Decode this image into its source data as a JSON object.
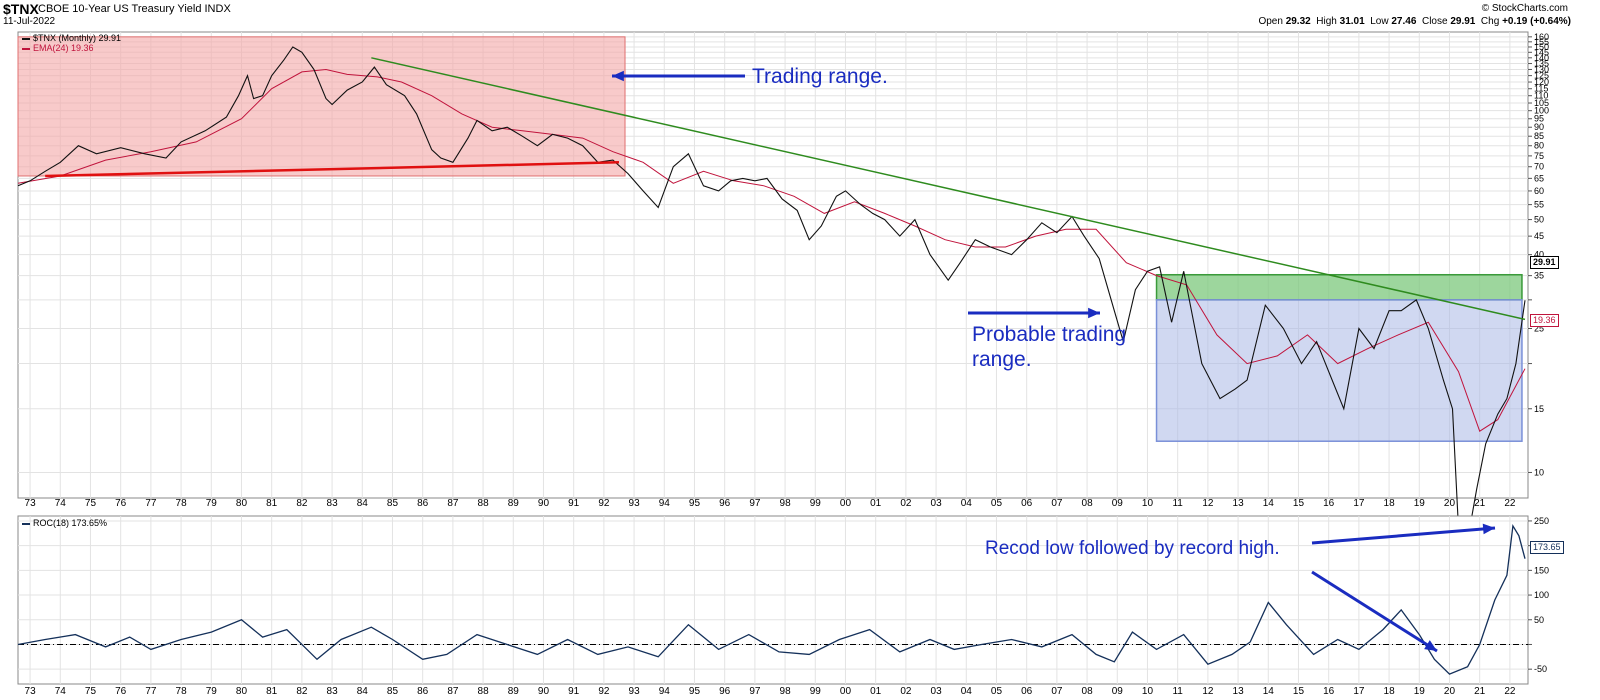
{
  "header": {
    "symbol": "$TNX",
    "description": "CBOE 10-Year US Treasury Yield INDX",
    "date": "11-Jul-2022",
    "credit": "© StockCharts.com",
    "open_label": "Open",
    "open": "29.32",
    "high_label": "High",
    "high": "31.01",
    "low_label": "Low",
    "low": "27.46",
    "close_label": "Close",
    "close": "29.91",
    "chg_label": "Chg",
    "chg": "+0.19 (+0.64%)"
  },
  "colors": {
    "price": "#111111",
    "ema": "#c0143c",
    "roc": "#14305a",
    "annotation": "#1a2cc0",
    "red_zone": "#f4a6a6",
    "green_zone": "#7cc87c",
    "blue_zone": "#a9b8e6",
    "trendline_green": "#2e8b1e",
    "trendline_red": "#e01010"
  },
  "chart_data": [
    {
      "type": "line",
      "name": "price-panel",
      "scale": "log",
      "ylim": [
        8.5,
        165
      ],
      "xlim": [
        1972.6,
        2022.6
      ],
      "y_ticks": [
        10,
        15,
        20,
        25,
        30,
        35,
        40,
        45,
        50,
        55,
        60,
        65,
        70,
        75,
        80,
        85,
        90,
        95,
        100,
        105,
        110,
        115,
        120,
        125,
        130,
        135,
        140,
        145,
        150,
        155,
        160
      ],
      "y_tick_labels": [
        "10",
        "15",
        "",
        "25",
        "",
        "35",
        "40",
        "45",
        "50",
        "55",
        "60",
        "65",
        "70",
        "75",
        "80",
        "85",
        "90",
        "95",
        "100",
        "105",
        "110",
        "115",
        "120",
        "125",
        "130",
        "135",
        "140",
        "145",
        "150",
        "155",
        "160"
      ],
      "x_ticks": [
        1973,
        1974,
        1975,
        1976,
        1977,
        1978,
        1979,
        1980,
        1981,
        1982,
        1983,
        1984,
        1985,
        1986,
        1987,
        1988,
        1989,
        1990,
        1991,
        1992,
        1993,
        1994,
        1995,
        1996,
        1997,
        1998,
        1999,
        2000,
        2001,
        2002,
        2003,
        2004,
        2005,
        2006,
        2007,
        2008,
        2009,
        2010,
        2011,
        2012,
        2013,
        2014,
        2015,
        2016,
        2017,
        2018,
        2019,
        2020,
        2021,
        2022
      ],
      "x_tick_labels": [
        "73",
        "74",
        "75",
        "76",
        "77",
        "78",
        "79",
        "80",
        "81",
        "82",
        "83",
        "84",
        "85",
        "86",
        "87",
        "88",
        "89",
        "90",
        "91",
        "92",
        "93",
        "94",
        "95",
        "96",
        "97",
        "98",
        "99",
        "00",
        "01",
        "02",
        "03",
        "04",
        "05",
        "06",
        "07",
        "08",
        "09",
        "10",
        "11",
        "12",
        "13",
        "14",
        "15",
        "16",
        "17",
        "18",
        "19",
        "20",
        "21",
        "22"
      ],
      "grid": true,
      "legend_position": "top-left",
      "series": [
        {
          "name": "$TNX (Monthly) 29.91",
          "x": [
            1972.6,
            1973.0,
            1973.5,
            1974.0,
            1974.6,
            1975.2,
            1976.0,
            1976.8,
            1977.5,
            1978.0,
            1978.8,
            1979.5,
            1979.9,
            1980.2,
            1980.4,
            1980.7,
            1981.0,
            1981.4,
            1981.7,
            1982.0,
            1982.4,
            1982.8,
            1983.0,
            1983.5,
            1984.0,
            1984.4,
            1984.8,
            1985.4,
            1985.8,
            1986.3,
            1986.6,
            1987.0,
            1987.5,
            1987.8,
            1988.3,
            1988.8,
            1989.3,
            1989.8,
            1990.3,
            1990.8,
            1991.3,
            1991.8,
            1992.3,
            1992.8,
            1993.3,
            1993.8,
            1994.3,
            1994.8,
            1995.3,
            1995.8,
            1996.2,
            1996.6,
            1997.0,
            1997.4,
            1997.9,
            1998.4,
            1998.8,
            1999.2,
            1999.7,
            2000.0,
            2000.5,
            2000.9,
            2001.3,
            2001.8,
            2002.3,
            2002.8,
            2003.4,
            2003.8,
            2004.3,
            2004.8,
            2005.5,
            2006.0,
            2006.5,
            2007.0,
            2007.5,
            2007.9,
            2008.4,
            2008.9,
            2009.2,
            2009.6,
            2010.0,
            2010.4,
            2010.8,
            2011.2,
            2011.8,
            2012.4,
            2012.9,
            2013.3,
            2013.9,
            2014.5,
            2015.1,
            2015.6,
            2016.0,
            2016.5,
            2017.0,
            2017.5,
            2018.0,
            2018.4,
            2018.9,
            2019.3,
            2019.8,
            2020.1,
            2020.3,
            2020.6,
            2020.9,
            2021.2,
            2021.6,
            2021.9,
            2022.2,
            2022.5
          ],
          "y": [
            62,
            64,
            68,
            72,
            80,
            76,
            79,
            76,
            74,
            82,
            88,
            96,
            110,
            125,
            108,
            110,
            125,
            138,
            150,
            145,
            130,
            108,
            104,
            114,
            120,
            132,
            118,
            110,
            98,
            78,
            74,
            72,
            84,
            94,
            88,
            90,
            85,
            80,
            86,
            84,
            80,
            72,
            73,
            67,
            60,
            54,
            70,
            76,
            62,
            60,
            64,
            65,
            64,
            65,
            57,
            53,
            44,
            48,
            58,
            60,
            55,
            52,
            50,
            45,
            50,
            40,
            34,
            38,
            44,
            42,
            40,
            44,
            49,
            46,
            51,
            45,
            39,
            28,
            23,
            32,
            36,
            37,
            26,
            36,
            20,
            16,
            17,
            18,
            29,
            25,
            20,
            23,
            19,
            15,
            25,
            22,
            28,
            28,
            30,
            25,
            18,
            15,
            7,
            6.5,
            9,
            12,
            14.5,
            16,
            20,
            29.91
          ]
        },
        {
          "name": "EMA(24) 19.36",
          "x": [
            1972.6,
            1974.0,
            1975.5,
            1977.0,
            1978.5,
            1980.0,
            1981.0,
            1982.0,
            1982.8,
            1983.5,
            1984.5,
            1985.3,
            1986.3,
            1987.3,
            1988.3,
            1989.3,
            1990.3,
            1991.3,
            1992.3,
            1993.3,
            1994.3,
            1995.3,
            1996.3,
            1997.3,
            1998.3,
            1999.3,
            2000.3,
            2001.3,
            2002.3,
            2003.3,
            2004.3,
            2005.3,
            2006.3,
            2007.3,
            2008.3,
            2009.3,
            2010.3,
            2011.3,
            2012.3,
            2013.3,
            2014.3,
            2015.3,
            2016.3,
            2017.3,
            2018.3,
            2019.3,
            2020.3,
            2021.0,
            2021.6,
            2022.5
          ],
          "y": [
            63,
            66,
            73,
            77,
            82,
            95,
            115,
            128,
            130,
            126,
            124,
            120,
            110,
            98,
            90,
            88,
            86,
            84,
            77,
            72,
            63,
            68,
            64,
            62,
            58,
            52,
            56,
            52,
            48,
            44,
            42,
            42,
            45,
            47,
            47,
            38,
            35,
            33,
            24,
            20,
            21,
            24,
            20,
            22,
            24,
            26,
            19,
            13,
            14,
            19.36
          ]
        }
      ]
    },
    {
      "type": "line",
      "name": "roc-panel",
      "ylim": [
        -80,
        260
      ],
      "y_ticks": [
        -50,
        0,
        50,
        100,
        150,
        200,
        250
      ],
      "y_tick_labels": [
        "-50",
        "",
        "50",
        "100",
        "150",
        "200",
        "250"
      ],
      "zero_line": true,
      "legend_position": "top-left",
      "series": [
        {
          "name": "ROC(18) 173.65%",
          "x": [
            1972.6,
            1973.5,
            1974.5,
            1975.5,
            1976.3,
            1977.0,
            1978.0,
            1979.0,
            1980.0,
            1980.7,
            1981.5,
            1982.5,
            1983.3,
            1984.3,
            1985.0,
            1986.0,
            1986.8,
            1987.8,
            1988.8,
            1989.8,
            1990.8,
            1991.8,
            1992.8,
            1993.8,
            1994.8,
            1995.8,
            1996.8,
            1997.8,
            1998.8,
            1999.8,
            2000.8,
            2001.8,
            2002.8,
            2003.6,
            2004.5,
            2005.5,
            2006.5,
            2007.5,
            2008.3,
            2008.9,
            2009.5,
            2010.3,
            2011.2,
            2012.0,
            2012.8,
            2013.4,
            2014.0,
            2014.6,
            2015.5,
            2016.3,
            2017.0,
            2017.8,
            2018.4,
            2019.0,
            2019.5,
            2020.0,
            2020.6,
            2021.0,
            2021.5,
            2021.9,
            2022.1,
            2022.3,
            2022.5
          ],
          "y": [
            0,
            10,
            20,
            -5,
            15,
            -10,
            10,
            25,
            50,
            15,
            30,
            -30,
            10,
            35,
            10,
            -30,
            -20,
            20,
            0,
            -20,
            10,
            -20,
            -5,
            -25,
            40,
            -10,
            20,
            -15,
            -20,
            10,
            30,
            -15,
            10,
            -10,
            0,
            10,
            -5,
            20,
            -20,
            -35,
            25,
            -10,
            20,
            -40,
            -20,
            5,
            85,
            40,
            -20,
            10,
            -10,
            30,
            70,
            20,
            -30,
            -60,
            -45,
            0,
            90,
            140,
            240,
            220,
            173.65
          ]
        }
      ]
    }
  ],
  "tags": {
    "price_last": "29.91",
    "ema_last": "19.36",
    "roc_last": "173.65"
  },
  "annotations": {
    "trading_range": "Trading range.",
    "probable_line1": "Probable trading",
    "probable_line2": "range.",
    "record": "Recod low followed by record high."
  }
}
